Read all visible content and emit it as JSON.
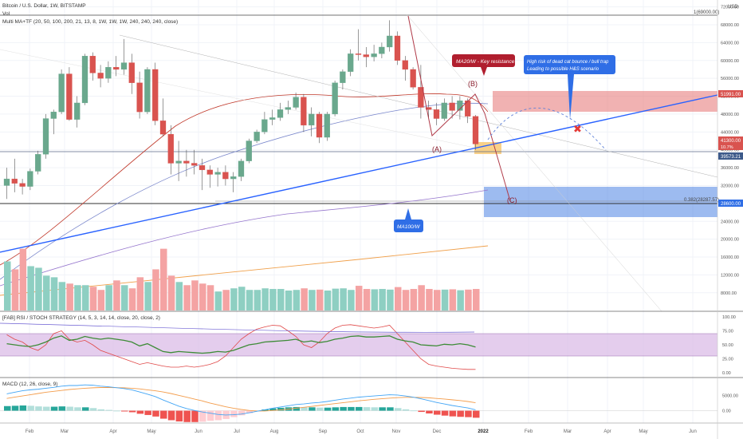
{
  "header": {
    "symbol_line": "Bitcoin / U.S. Dollar, 1W, BITSTAMP",
    "vol_label": "Vol",
    "ma_label": "Multi MA+TF (20, 50, 100, 200, 21, 13, 8, 1W, 1W, 1W, 240, 240, 240, close)",
    "currency": "USD",
    "ath_label": "1(69000.00)"
  },
  "colors": {
    "bull": "#6aa88d",
    "bear": "#d9534f",
    "vol_bull": "#8ecfc2",
    "vol_bear": "#f4a3a3",
    "trend_blue": "#2962ff",
    "ma20": "#c0392b",
    "ma50": "#7986cb",
    "ma100": "#9575cd",
    "ma200": "#f0a04b",
    "resistance_zone": "#e57373",
    "support_zone": "#5c8ee6",
    "rsi_band": "#d9b8e6",
    "macd_line": "#42a5f5",
    "signal_line": "#f39c4b"
  },
  "annotations": {
    "resistance_note": "MA20/W - Key resistance",
    "trap_note_line1": "High risk of dead cat bounce / bull trap",
    "trap_note_line2": "Leading to possible H&S scenario",
    "ma100_note": "MA100/W",
    "label_a": "(A)",
    "label_b": "(B)",
    "label_c": "(C)",
    "fib_label": "0.382(28287.57)",
    "cross_mark": "✖"
  },
  "price_tags": {
    "resistance": "51991.00",
    "current": "41300.00",
    "current_sub": "10.7%",
    "support": "39573.21",
    "target": "28600.00"
  },
  "time_axis": [
    "Feb",
    "Mar",
    "Apr",
    "May",
    "Jun",
    "Jul",
    "Aug",
    "Sep",
    "Oct",
    "Nov",
    "Dec",
    "2022",
    "Feb",
    "Mar",
    "Apr",
    "May",
    "Jun"
  ],
  "price_axis": {
    "ticks": [
      "72000.00",
      "68000.00",
      "64000.00",
      "60000.00",
      "56000.00",
      "52000.00",
      "48000.00",
      "44000.00",
      "40000.00",
      "36000.00",
      "32000.00",
      "28000.00",
      "24000.00",
      "20000.00",
      "16000.00",
      "12000.00",
      "8000.00"
    ]
  },
  "rsi": {
    "title": "[FAB] RSI / STOCH STRATEGY (14, 5, 3, 14, 14, close, 20, close, 2)",
    "ticks": [
      "100.00",
      "75.00",
      "50.00",
      "25.00",
      "0.00"
    ]
  },
  "macd": {
    "title": "MACD (12, 26, close, 9)",
    "ticks": [
      "5000.00",
      "0.00"
    ]
  },
  "chart_data": {
    "type": "candlestick",
    "price_range": [
      6000,
      73000
    ],
    "candles": [
      {
        "o": 32000,
        "h": 36000,
        "l": 29000,
        "c": 33500
      },
      {
        "o": 33500,
        "h": 38000,
        "l": 30500,
        "c": 32500
      },
      {
        "o": 32500,
        "h": 33500,
        "l": 30000,
        "c": 31800
      },
      {
        "o": 31800,
        "h": 35800,
        "l": 31000,
        "c": 35200
      },
      {
        "o": 35200,
        "h": 39800,
        "l": 34500,
        "c": 39000
      },
      {
        "o": 39000,
        "h": 48000,
        "l": 38000,
        "c": 47000
      },
      {
        "o": 47000,
        "h": 49000,
        "l": 43500,
        "c": 48500
      },
      {
        "o": 48500,
        "h": 58000,
        "l": 48000,
        "c": 57000
      },
      {
        "o": 57000,
        "h": 58500,
        "l": 46500,
        "c": 46800
      },
      {
        "o": 46800,
        "h": 52000,
        "l": 45000,
        "c": 50500
      },
      {
        "o": 50500,
        "h": 61500,
        "l": 50000,
        "c": 61000
      },
      {
        "o": 61000,
        "h": 61800,
        "l": 55500,
        "c": 57200
      },
      {
        "o": 57200,
        "h": 59000,
        "l": 54000,
        "c": 56000
      },
      {
        "o": 56000,
        "h": 59800,
        "l": 55000,
        "c": 58500
      },
      {
        "o": 58500,
        "h": 61000,
        "l": 56500,
        "c": 58000
      },
      {
        "o": 58000,
        "h": 64800,
        "l": 56800,
        "c": 59500
      },
      {
        "o": 59500,
        "h": 61500,
        "l": 52500,
        "c": 55000
      },
      {
        "o": 55000,
        "h": 57500,
        "l": 47000,
        "c": 48500
      },
      {
        "o": 48500,
        "h": 58500,
        "l": 48000,
        "c": 58000
      },
      {
        "o": 58000,
        "h": 59500,
        "l": 45500,
        "c": 46500
      },
      {
        "o": 46500,
        "h": 51500,
        "l": 43000,
        "c": 43500
      },
      {
        "o": 43500,
        "h": 45500,
        "l": 34500,
        "c": 37000
      },
      {
        "o": 37000,
        "h": 42000,
        "l": 33000,
        "c": 37500
      },
      {
        "o": 37500,
        "h": 40000,
        "l": 34000,
        "c": 37000
      },
      {
        "o": 37000,
        "h": 40000,
        "l": 34500,
        "c": 36500
      },
      {
        "o": 36500,
        "h": 38000,
        "l": 31000,
        "c": 35500
      },
      {
        "o": 35500,
        "h": 36500,
        "l": 31500,
        "c": 34500
      },
      {
        "o": 34500,
        "h": 36000,
        "l": 31800,
        "c": 35000
      },
      {
        "o": 35000,
        "h": 36500,
        "l": 32000,
        "c": 33500
      },
      {
        "o": 33500,
        "h": 35000,
        "l": 30500,
        "c": 34000
      },
      {
        "o": 34000,
        "h": 38000,
        "l": 33000,
        "c": 37500
      },
      {
        "o": 37500,
        "h": 42500,
        "l": 37000,
        "c": 42000
      },
      {
        "o": 42000,
        "h": 44500,
        "l": 41500,
        "c": 44000
      },
      {
        "o": 44000,
        "h": 48500,
        "l": 43500,
        "c": 46800
      },
      {
        "o": 46800,
        "h": 49000,
        "l": 45500,
        "c": 47200
      },
      {
        "o": 47200,
        "h": 50500,
        "l": 46500,
        "c": 49000
      },
      {
        "o": 49000,
        "h": 51000,
        "l": 48000,
        "c": 49500
      },
      {
        "o": 49500,
        "h": 52800,
        "l": 49000,
        "c": 51800
      },
      {
        "o": 51800,
        "h": 52500,
        "l": 44000,
        "c": 45500
      },
      {
        "o": 45500,
        "h": 49500,
        "l": 43000,
        "c": 48000
      },
      {
        "o": 48000,
        "h": 48500,
        "l": 41500,
        "c": 42800
      },
      {
        "o": 42800,
        "h": 48500,
        "l": 42000,
        "c": 48000
      },
      {
        "o": 48000,
        "h": 55500,
        "l": 47500,
        "c": 55000
      },
      {
        "o": 55000,
        "h": 58000,
        "l": 53500,
        "c": 57500
      },
      {
        "o": 57500,
        "h": 62500,
        "l": 56500,
        "c": 61500
      },
      {
        "o": 61500,
        "h": 67000,
        "l": 60000,
        "c": 61300
      },
      {
        "o": 61300,
        "h": 63000,
        "l": 58500,
        "c": 60800
      },
      {
        "o": 60800,
        "h": 63500,
        "l": 59800,
        "c": 61500
      },
      {
        "o": 61500,
        "h": 64000,
        "l": 60500,
        "c": 63000
      },
      {
        "o": 63000,
        "h": 69000,
        "l": 62000,
        "c": 65500
      },
      {
        "o": 65500,
        "h": 66500,
        "l": 59000,
        "c": 60000
      },
      {
        "o": 60000,
        "h": 61000,
        "l": 55500,
        "c": 58000
      },
      {
        "o": 58000,
        "h": 58500,
        "l": 53500,
        "c": 54000
      },
      {
        "o": 54000,
        "h": 59000,
        "l": 47000,
        "c": 49500
      },
      {
        "o": 49500,
        "h": 51000,
        "l": 47000,
        "c": 49000
      },
      {
        "o": 49000,
        "h": 50500,
        "l": 45500,
        "c": 47000
      },
      {
        "o": 47000,
        "h": 51500,
        "l": 46500,
        "c": 50500
      },
      {
        "o": 50500,
        "h": 52000,
        "l": 47000,
        "c": 48800
      },
      {
        "o": 48800,
        "h": 52000,
        "l": 46800,
        "c": 51000
      },
      {
        "o": 51000,
        "h": 51500,
        "l": 46000,
        "c": 47500
      },
      {
        "o": 47500,
        "h": 47800,
        "l": 40000,
        "c": 41300
      }
    ],
    "volume_range": [
      0,
      30000
    ],
    "volumes": [
      15500,
      13000,
      19500,
      14000,
      13500,
      11000,
      10500,
      9000,
      8500,
      8000,
      8000,
      7500,
      6500,
      8000,
      9500,
      8000,
      7000,
      10500,
      9000,
      13000,
      19500,
      11000,
      9000,
      8000,
      9500,
      8500,
      8000,
      6000,
      6500,
      7000,
      7500,
      6500,
      6500,
      7000,
      6800,
      6800,
      6300,
      6500,
      7000,
      6500,
      6600,
      6300,
      6900,
      7000,
      6500,
      7800,
      6800,
      6700,
      6800,
      6600,
      7400,
      6500,
      6800,
      8000,
      6800,
      6500,
      6600,
      6700,
      6400,
      6600,
      6800
    ],
    "rsi_range": [
      0,
      100
    ],
    "rsi_values": [
      52,
      50,
      48,
      47,
      50,
      55,
      62,
      66,
      58,
      60,
      65,
      62,
      60,
      62,
      60,
      58,
      55,
      48,
      52,
      45,
      38,
      36,
      38,
      37,
      36,
      35,
      36,
      38,
      37,
      40,
      45,
      50,
      52,
      55,
      56,
      57,
      58,
      60,
      55,
      57,
      54,
      56,
      60,
      62,
      65,
      66,
      64,
      64,
      65,
      66,
      60,
      57,
      55,
      50,
      49,
      48,
      51,
      50,
      52,
      50,
      46
    ],
    "stoch_values": [
      68,
      60,
      55,
      45,
      40,
      50,
      70,
      75,
      60,
      55,
      58,
      50,
      40,
      35,
      30,
      25,
      20,
      15,
      18,
      15,
      12,
      10,
      10,
      12,
      10,
      12,
      15,
      20,
      30,
      45,
      60,
      70,
      78,
      82,
      85,
      84,
      75,
      65,
      50,
      45,
      55,
      70,
      80,
      85,
      86,
      84,
      82,
      80,
      82,
      85,
      70,
      55,
      40,
      25,
      15,
      12,
      10,
      8,
      7,
      6,
      6
    ],
    "macd_range": [
      -3500,
      9500
    ],
    "macd_values": [
      5500,
      6000,
      6500,
      6800,
      7000,
      7300,
      7600,
      8000,
      8200,
      8200,
      8400,
      8300,
      8000,
      7800,
      7500,
      7200,
      6800,
      6100,
      5400,
      4600,
      3500,
      2500,
      1500,
      700,
      100,
      -400,
      -800,
      -1200,
      -1400,
      -1300,
      -1100,
      -700,
      -200,
      300,
      800,
      1200,
      1600,
      2000,
      2200,
      2500,
      2700,
      3000,
      3400,
      3800,
      4100,
      4400,
      4600,
      4800,
      5000,
      5200,
      5100,
      4800,
      4400,
      3900,
      3300,
      2700,
      2200,
      1700,
      1300,
      900,
      300
    ],
    "signal_values": [
      4000,
      4400,
      4800,
      5200,
      5600,
      6000,
      6300,
      6600,
      6900,
      7100,
      7300,
      7450,
      7550,
      7550,
      7500,
      7450,
      7300,
      7100,
      6800,
      6500,
      6100,
      5600,
      5000,
      4400,
      3800,
      3200,
      2500,
      1900,
      1300,
      800,
      400,
      100,
      -100,
      -100,
      50,
      250,
      500,
      800,
      1100,
      1400,
      1700,
      2000,
      2300,
      2600,
      2900,
      3200,
      3450,
      3700,
      3900,
      4100,
      4250,
      4350,
      4350,
      4300,
      4200,
      4000,
      3800,
      3550,
      3300,
      3000,
      2600
    ],
    "macd_hist": [
      1500,
      1600,
      1700,
      1600,
      1400,
      1300,
      1300,
      1400,
      1300,
      1100,
      1100,
      850,
      450,
      250,
      0,
      -250,
      -500,
      -1000,
      -1400,
      -1900,
      -2600,
      -3100,
      -3500,
      -3700,
      -3700,
      -3600,
      -3300,
      -3100,
      -2700,
      -2100,
      -1500,
      -800,
      -100,
      400,
      750,
      950,
      1100,
      1200,
      1100,
      1100,
      1000,
      1000,
      1100,
      1200,
      1200,
      1200,
      1150,
      1100,
      1100,
      1100,
      850,
      450,
      50,
      -400,
      -900,
      -1300,
      -1600,
      -1850,
      -2000,
      -2100,
      -2300
    ]
  }
}
